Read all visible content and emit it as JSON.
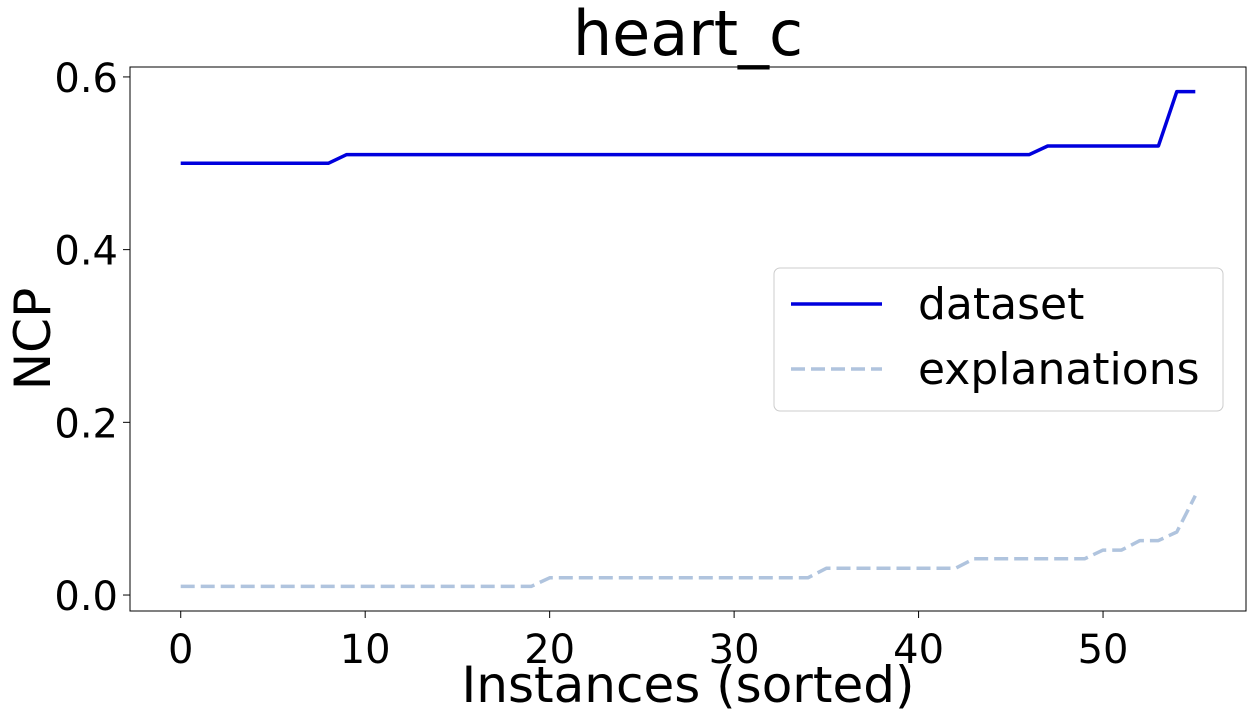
{
  "chart_data": {
    "type": "line",
    "title": "heart_c",
    "xlabel": "Instances (sorted)",
    "ylabel": "NCP",
    "xlim": [
      -2.75,
      57.75
    ],
    "ylim": [
      -0.0185,
      0.6115
    ],
    "x_ticks": [
      0,
      10,
      20,
      30,
      40,
      50
    ],
    "x_tick_labels": [
      "0",
      "10",
      "20",
      "30",
      "40",
      "50"
    ],
    "y_ticks": [
      0.0,
      0.2,
      0.4,
      0.6
    ],
    "y_tick_labels": [
      "0.0",
      "0.2",
      "0.4",
      "0.6"
    ],
    "grid": false,
    "legend_position": "center-right",
    "series": [
      {
        "name": "dataset",
        "color": "#0000dd",
        "style": "solid",
        "x": [
          0,
          1,
          2,
          3,
          4,
          5,
          6,
          7,
          8,
          9,
          10,
          11,
          12,
          13,
          14,
          15,
          16,
          17,
          18,
          19,
          20,
          21,
          22,
          23,
          24,
          25,
          26,
          27,
          28,
          29,
          30,
          31,
          32,
          33,
          34,
          35,
          36,
          37,
          38,
          39,
          40,
          41,
          42,
          43,
          44,
          45,
          46,
          47,
          48,
          49,
          50,
          51,
          52,
          53,
          54,
          55
        ],
        "y": [
          0.5,
          0.5,
          0.5,
          0.5,
          0.5,
          0.5,
          0.5,
          0.5,
          0.5,
          0.51,
          0.51,
          0.51,
          0.51,
          0.51,
          0.51,
          0.51,
          0.51,
          0.51,
          0.51,
          0.51,
          0.51,
          0.51,
          0.51,
          0.51,
          0.51,
          0.51,
          0.51,
          0.51,
          0.51,
          0.51,
          0.51,
          0.51,
          0.51,
          0.51,
          0.51,
          0.51,
          0.51,
          0.51,
          0.51,
          0.51,
          0.51,
          0.51,
          0.51,
          0.51,
          0.51,
          0.51,
          0.51,
          0.52,
          0.52,
          0.52,
          0.52,
          0.52,
          0.52,
          0.52,
          0.583,
          0.583
        ]
      },
      {
        "name": "explanations",
        "color": "#b0c4de",
        "style": "dashed",
        "x": [
          0,
          1,
          2,
          3,
          4,
          5,
          6,
          7,
          8,
          9,
          10,
          11,
          12,
          13,
          14,
          15,
          16,
          17,
          18,
          19,
          20,
          21,
          22,
          23,
          24,
          25,
          26,
          27,
          28,
          29,
          30,
          31,
          32,
          33,
          34,
          35,
          36,
          37,
          38,
          39,
          40,
          41,
          42,
          43,
          44,
          45,
          46,
          47,
          48,
          49,
          50,
          51,
          52,
          53,
          54,
          55
        ],
        "y": [
          0.01,
          0.01,
          0.01,
          0.01,
          0.01,
          0.01,
          0.01,
          0.01,
          0.01,
          0.01,
          0.01,
          0.01,
          0.01,
          0.01,
          0.01,
          0.01,
          0.01,
          0.01,
          0.01,
          0.01,
          0.02,
          0.02,
          0.02,
          0.02,
          0.02,
          0.02,
          0.02,
          0.02,
          0.02,
          0.02,
          0.02,
          0.02,
          0.02,
          0.02,
          0.02,
          0.031,
          0.031,
          0.031,
          0.031,
          0.031,
          0.031,
          0.031,
          0.031,
          0.042,
          0.042,
          0.042,
          0.042,
          0.042,
          0.042,
          0.042,
          0.052,
          0.052,
          0.063,
          0.063,
          0.073,
          0.115
        ]
      }
    ]
  }
}
